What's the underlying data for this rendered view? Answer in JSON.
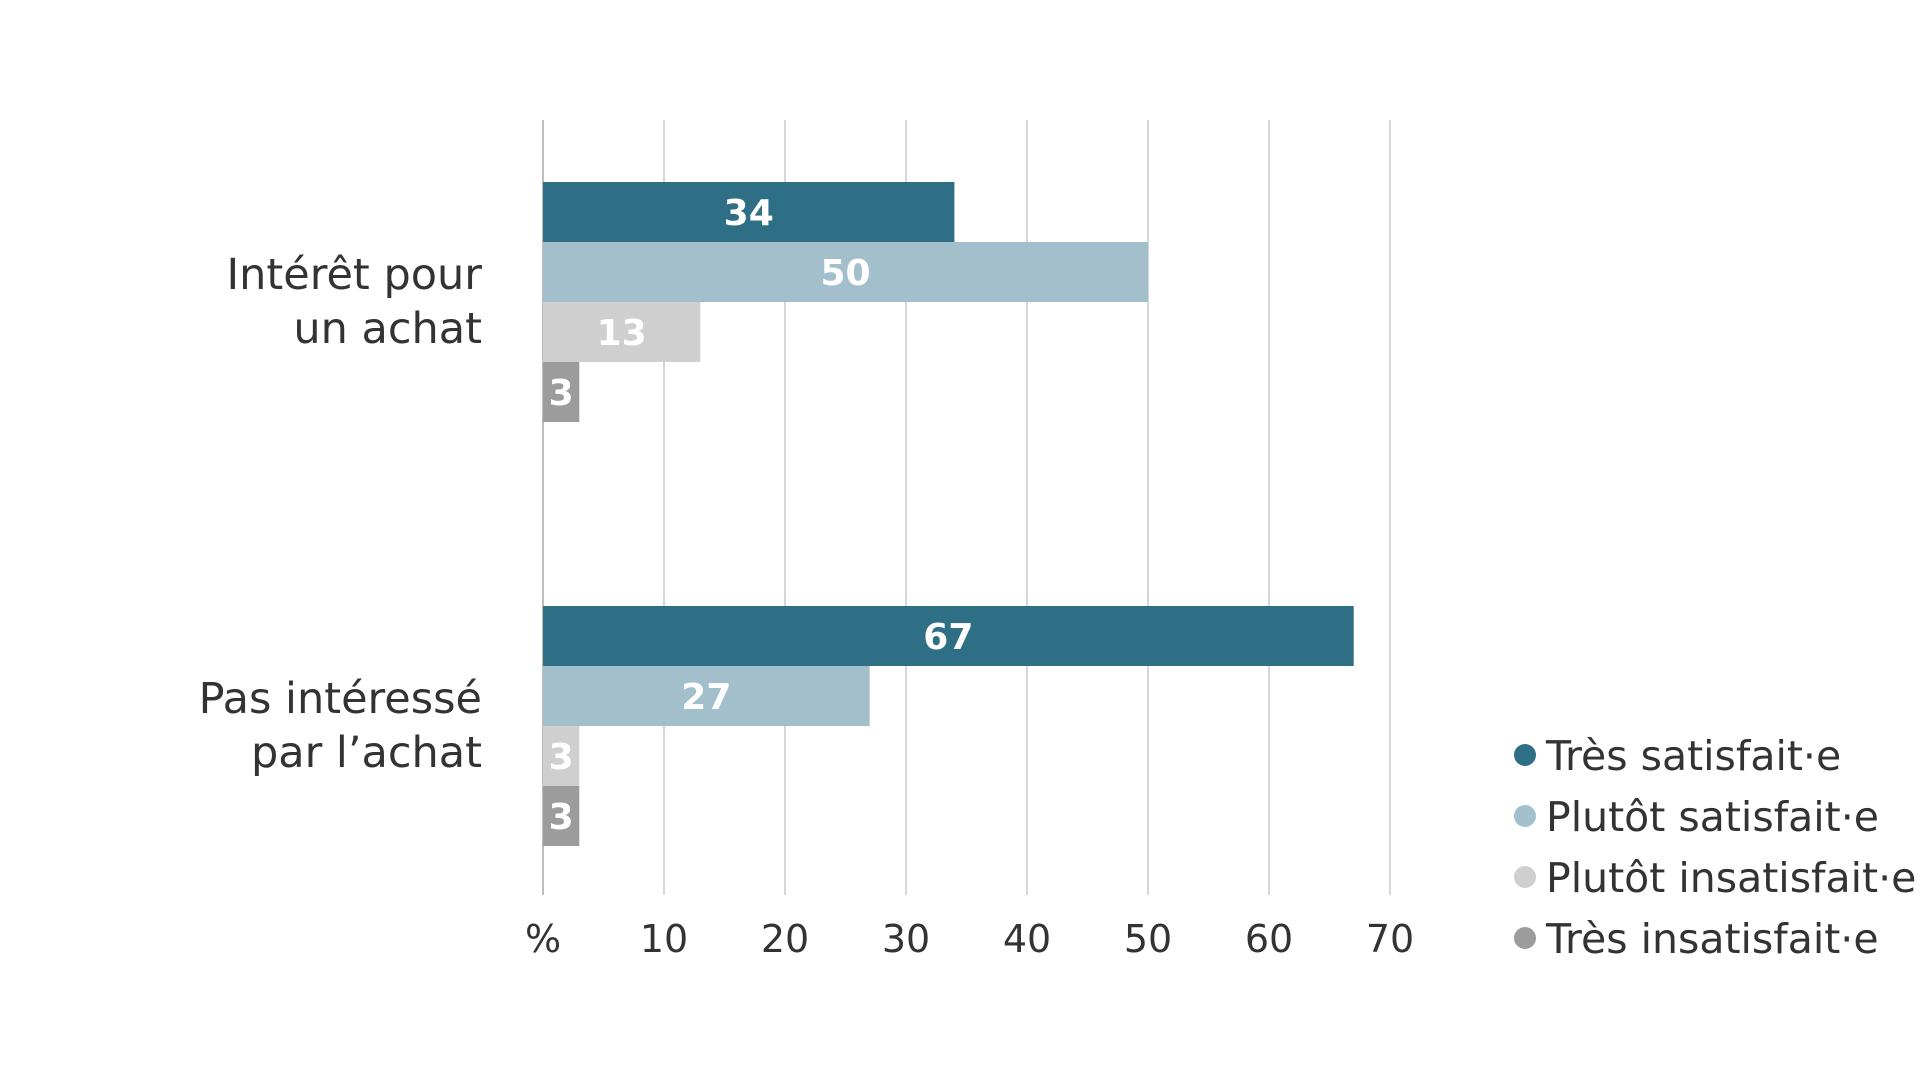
{
  "chart_data": {
    "type": "bar",
    "orientation": "horizontal",
    "categories": [
      [
        "Intérêt pour",
        "un achat"
      ],
      [
        "Pas intéressé",
        "par l’achat"
      ]
    ],
    "series": [
      {
        "name": "Très satisfait·e",
        "color": "#2e6f86",
        "values": [
          34,
          67
        ]
      },
      {
        "name": "Plutôt satisfait·e",
        "color": "#a2bfcb",
        "values": [
          50,
          27
        ]
      },
      {
        "name": "Plutôt insatisfait·e",
        "color": "#cfcfcf",
        "values": [
          13,
          3
        ]
      },
      {
        "name": "Très insatisfait·e",
        "color": "#9c9c9c",
        "values": [
          3,
          3
        ]
      }
    ],
    "xlim": [
      0,
      70
    ],
    "xticks": [
      "%",
      "10",
      "20",
      "30",
      "40",
      "50",
      "60",
      "70"
    ],
    "grid": true,
    "legend_position": "bottom-right",
    "data_labels": true
  }
}
